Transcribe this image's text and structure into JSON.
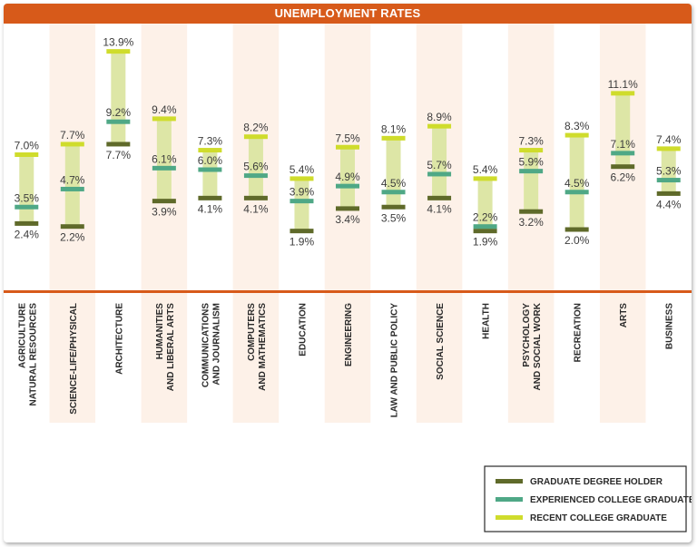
{
  "chart_data": {
    "type": "range",
    "title": "UNEMPLOYMENT RATES",
    "categories": [
      [
        "AGRICULTURE",
        "NATURAL RESOURCES"
      ],
      [
        "SCIENCE-LIFE/PHYSICAL"
      ],
      [
        "ARCHITECTURE"
      ],
      [
        "HUMANITIES",
        "AND LIBERAL ARTS"
      ],
      [
        "COMMUNICATIONS",
        "AND JOURNALISM"
      ],
      [
        "COMPUTERS",
        "AND MATHEMATICS"
      ],
      [
        "EDUCATION"
      ],
      [
        "ENGINEERING"
      ],
      [
        "LAW AND PUBLIC POLICY"
      ],
      [
        "SOCIAL SCIENCE"
      ],
      [
        "HEALTH"
      ],
      [
        "PSYCHOLOGY",
        "AND SOCIAL WORK"
      ],
      [
        "RECREATION"
      ],
      [
        "ARTS"
      ],
      [
        "BUSINESS"
      ]
    ],
    "series": [
      {
        "name": "GRADUATE DEGREE HOLDER",
        "color": "#5f6a2a",
        "values": [
          2.4,
          2.2,
          7.7,
          3.9,
          4.1,
          4.1,
          1.9,
          3.4,
          3.5,
          4.1,
          1.9,
          3.2,
          2.0,
          6.2,
          4.4
        ],
        "labels": [
          "2.4%",
          "2.2%",
          "7.7%",
          "3.9%",
          "4.1%",
          "4.1%",
          "1.9%",
          "3.4%",
          "3.5%",
          "4.1%",
          "1.9%",
          "3.2%",
          "2.0%",
          "6.2%",
          "4.4%"
        ]
      },
      {
        "name": "EXPERIENCED COLLEGE GRADUATE",
        "color": "#4fa886",
        "values": [
          3.5,
          4.7,
          9.2,
          6.1,
          6.0,
          5.6,
          3.9,
          4.9,
          4.5,
          5.7,
          2.2,
          5.9,
          4.5,
          7.1,
          5.3
        ],
        "labels": [
          "3.5%",
          "4.7%",
          "9.2%",
          "6.1%",
          "6.0%",
          "5.6%",
          "3.9%",
          "4.9%",
          "4.5%",
          "5.7%",
          "2.2%",
          "5.9%",
          "4.5%",
          "7.1%",
          "5.3%"
        ]
      },
      {
        "name": "RECENT COLLEGE GRADUATE",
        "color": "#cfdc2c",
        "values": [
          7.0,
          7.7,
          13.9,
          9.4,
          7.3,
          8.2,
          5.4,
          7.5,
          8.1,
          8.9,
          5.4,
          7.3,
          8.3,
          11.1,
          7.4
        ],
        "labels": [
          "7.0%",
          "7.7%",
          "13.9%",
          "9.4%",
          "7.3%",
          "8.2%",
          "5.4%",
          "7.5%",
          "8.1%",
          "8.9%",
          "5.4%",
          "7.3%",
          "8.3%",
          "11.1%",
          "7.4%"
        ]
      }
    ],
    "legend_position": "bottom-right",
    "colors": {
      "title_bar": "#d75a1a",
      "divider": "#d75a1a",
      "range_bar": "#dde6a6",
      "column_stripe": "#fdf1e8"
    }
  }
}
